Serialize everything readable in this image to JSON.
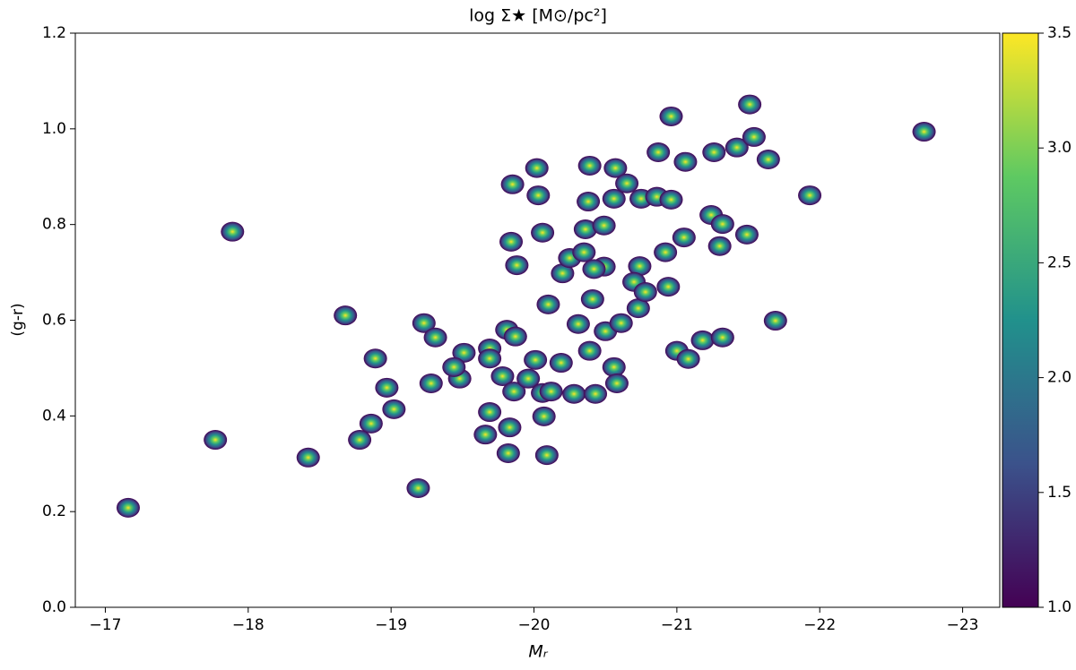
{
  "chart_data": {
    "type": "scatter",
    "title": "log Σ★ [M⊙/pc²]",
    "x_label": "Mᵣ",
    "y_label": "(g-r)",
    "x": [
      -17.16,
      -17.89,
      -17.77,
      -18.42,
      -18.68,
      -18.89,
      -18.97,
      -18.86,
      -19.02,
      -18.78,
      -19.19,
      -19.23,
      -19.31,
      -19.28,
      -19.48,
      -19.51,
      -19.44,
      -19.69,
      -19.69,
      -19.81,
      -19.87,
      -19.78,
      -19.69,
      -19.66,
      -19.83,
      -19.82,
      -19.86,
      -19.96,
      -20.01,
      -20.07,
      -20.09,
      -20.19,
      -20.06,
      -20.12,
      -20.28,
      -20.39,
      -20.56,
      -20.43,
      -20.58,
      -20.31,
      -20.1,
      -20.41,
      -20.5,
      -20.61,
      -20.73,
      -20.94,
      -21.0,
      -21.08,
      -21.18,
      -21.32,
      -21.69,
      -19.84,
      -19.88,
      -19.85,
      -20.02,
      -20.03,
      -20.06,
      -20.2,
      -20.25,
      -20.35,
      -20.36,
      -20.49,
      -20.49,
      -20.39,
      -20.57,
      -20.56,
      -20.38,
      -20.65,
      -20.75,
      -20.86,
      -20.87,
      -20.96,
      -21.06,
      -20.74,
      -20.7,
      -20.78,
      -20.92,
      -21.05,
      -21.24,
      -21.32,
      -21.3,
      -21.49,
      -21.26,
      -21.42,
      -21.54,
      -21.51,
      -21.64,
      -21.93,
      -22.73,
      -20.96,
      -20.42
    ],
    "values": [
      0.208,
      0.785,
      0.35,
      0.313,
      0.61,
      0.52,
      0.459,
      0.384,
      0.414,
      0.35,
      0.249,
      0.594,
      0.564,
      0.468,
      0.478,
      0.532,
      0.502,
      0.541,
      0.52,
      0.58,
      0.566,
      0.483,
      0.408,
      0.361,
      0.376,
      0.322,
      0.451,
      0.478,
      0.517,
      0.399,
      0.318,
      0.511,
      0.448,
      0.451,
      0.446,
      0.536,
      0.502,
      0.446,
      0.468,
      0.592,
      0.633,
      0.644,
      0.577,
      0.594,
      0.625,
      0.67,
      0.536,
      0.519,
      0.558,
      0.564,
      0.599,
      0.764,
      0.715,
      0.884,
      0.918,
      0.861,
      0.783,
      0.698,
      0.73,
      0.742,
      0.79,
      0.798,
      0.712,
      0.923,
      0.918,
      0.854,
      0.848,
      0.886,
      0.854,
      0.858,
      0.951,
      1.026,
      0.931,
      0.713,
      0.68,
      0.659,
      0.742,
      0.773,
      0.82,
      0.801,
      0.755,
      0.779,
      0.951,
      0.961,
      0.983,
      1.051,
      0.936,
      0.861,
      0.994,
      0.852,
      0.707
    ],
    "xlim": [
      -16.79,
      -23.26
    ],
    "xticks": [
      {
        "value": -17,
        "label": "−17"
      },
      {
        "value": -18,
        "label": "−18"
      },
      {
        "value": -19,
        "label": "−19"
      },
      {
        "value": -20,
        "label": "−20"
      },
      {
        "value": -21,
        "label": "−21"
      },
      {
        "value": -22,
        "label": "−22"
      },
      {
        "value": -23,
        "label": "−23"
      }
    ],
    "ylim": [
      0,
      1.2
    ],
    "yticks": [
      {
        "value": 0,
        "label": "0.0"
      },
      0.2,
      0.4,
      0.6,
      0.8,
      {
        "value": 1,
        "label": "1.0"
      },
      1.2
    ],
    "colorbar": {
      "lim": [
        1,
        3.5
      ],
      "ticks": [
        {
          "value": 1,
          "label": "1.0"
        },
        1.5,
        {
          "value": 2,
          "label": "2.0"
        },
        2.5,
        {
          "value": 3,
          "label": "3.0"
        },
        3.5
      ],
      "colors": [
        "#440154",
        "#3b528b",
        "#21918c",
        "#5ec962",
        "#fde725"
      ]
    }
  }
}
